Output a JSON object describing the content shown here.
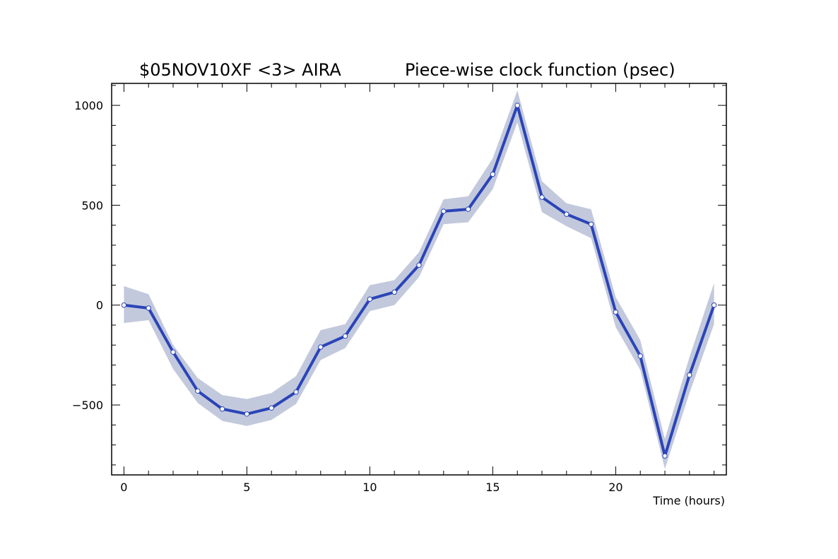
{
  "chart_data": {
    "type": "line",
    "title_left": "$05NOV10XF <3>  AIRA",
    "title_right": "Piece-wise clock function (psec)",
    "xlabel": "Time (hours)",
    "ylabel": "",
    "xlim": [
      -0.5,
      24.5
    ],
    "ylim": [
      -850,
      1110
    ],
    "x_ticks": [
      0,
      5,
      10,
      15,
      20
    ],
    "x_tick_labels": [
      "0",
      "5",
      "10",
      "15",
      "20"
    ],
    "y_ticks": [
      -500,
      0,
      500,
      1000
    ],
    "y_tick_labels": [
      "−500",
      "0",
      "500",
      "1000"
    ],
    "grid": false,
    "colors": {
      "line": "#2a44b8",
      "band": "#c3c9dc",
      "marker_fill": "#ffffff"
    },
    "series": [
      {
        "x": [
          0,
          1,
          2,
          3,
          4,
          5,
          6,
          7,
          8,
          9,
          10,
          11,
          12,
          13,
          14,
          15,
          16,
          17,
          18,
          19,
          20,
          21,
          22,
          23,
          24
        ],
        "y": [
          0,
          -15,
          -235,
          -430,
          -520,
          -545,
          -515,
          -435,
          -210,
          -155,
          30,
          65,
          200,
          470,
          480,
          655,
          1000,
          540,
          455,
          405,
          -35,
          -255,
          -755,
          -350,
          0
        ],
        "upper": [
          95,
          55,
          -200,
          -365,
          -450,
          -470,
          -440,
          -355,
          -125,
          -95,
          100,
          125,
          265,
          530,
          545,
          735,
          1075,
          620,
          510,
          480,
          40,
          -175,
          -670,
          -260,
          110
        ],
        "lower": [
          -90,
          -75,
          -320,
          -490,
          -580,
          -605,
          -575,
          -495,
          -275,
          -215,
          -30,
          0,
          140,
          405,
          415,
          580,
          915,
          465,
          395,
          335,
          -110,
          -325,
          -820,
          -440,
          -95
        ]
      }
    ]
  }
}
